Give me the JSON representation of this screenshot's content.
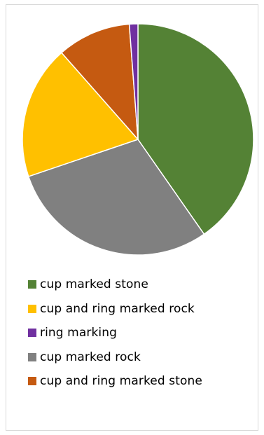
{
  "chart_data": {
    "type": "pie",
    "title": "",
    "start": "top (12 o'clock), clockwise",
    "slices": [
      {
        "label": "cup marked stone",
        "value": 40.3,
        "color": "#548235"
      },
      {
        "label": "cup marked rock",
        "value": 29.5,
        "color": "#808080"
      },
      {
        "label": "cup and ring marked rock",
        "value": 18.7,
        "color": "#FFC000"
      },
      {
        "label": "cup and ring marked stone",
        "value": 10.3,
        "color": "#C55A11"
      },
      {
        "label": "ring marking",
        "value": 1.2,
        "color": "#7030A0"
      }
    ],
    "legend": {
      "position": "bottom",
      "order": [
        "cup marked stone",
        "cup and ring marked rock",
        "ring marking",
        "cup marked rock",
        "cup and ring marked stone"
      ]
    }
  }
}
